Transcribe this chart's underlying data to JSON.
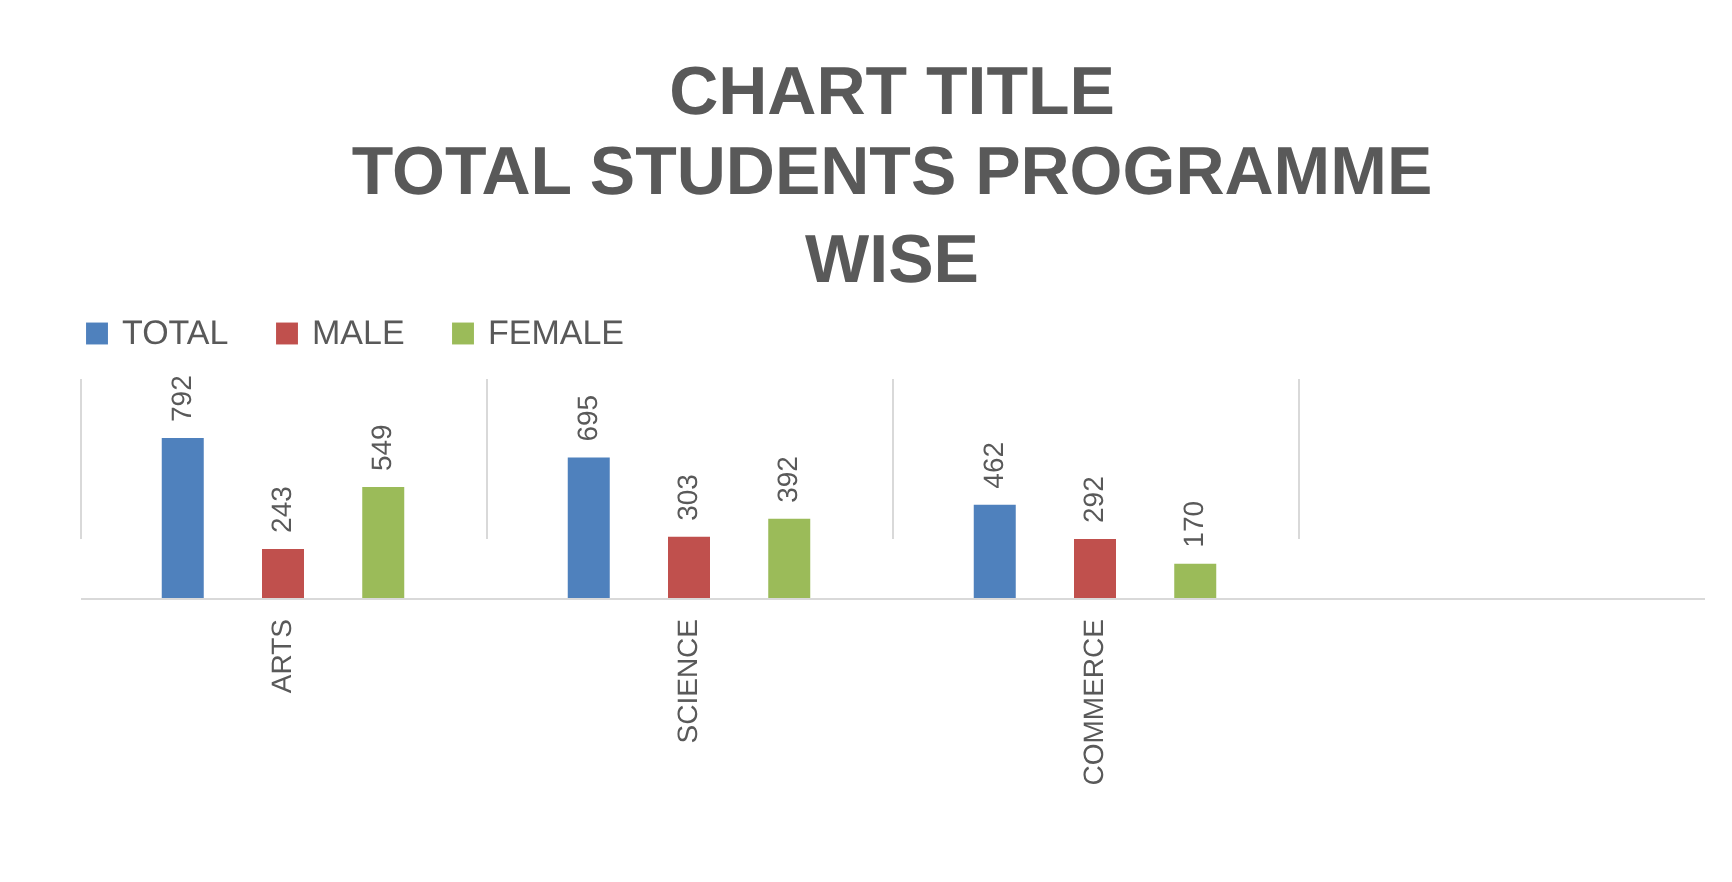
{
  "chart_data": {
    "type": "bar",
    "title": "CHART TITLE",
    "subtitle": "TOTAL STUDENTS PROGRAMME WISE",
    "categories": [
      "ARTS",
      "SCIENCE",
      "COMMERCE",
      null
    ],
    "series": [
      {
        "name": "TOTAL",
        "color": "#4f81bd",
        "values": [
          792,
          695,
          462,
          null
        ]
      },
      {
        "name": "MALE",
        "color": "#c0504d",
        "values": [
          243,
          303,
          292,
          null
        ]
      },
      {
        "name": "FEMALE",
        "color": "#9bbb59",
        "values": [
          549,
          392,
          170,
          null
        ]
      }
    ],
    "data_labels": true,
    "grid": "x",
    "legend": "top"
  }
}
